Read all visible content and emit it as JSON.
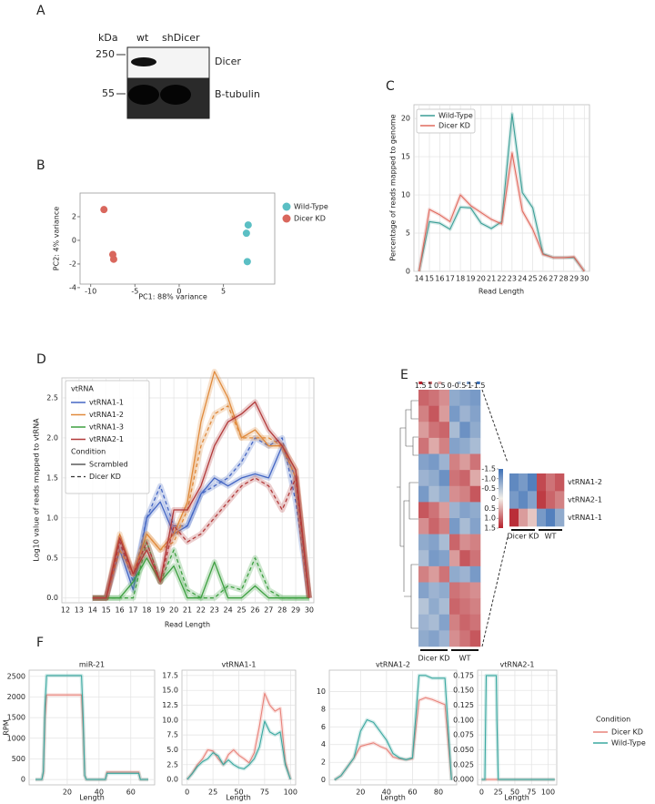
{
  "panel_labels": [
    "A",
    "B",
    "C",
    "D",
    "E",
    "F"
  ],
  "blot": {
    "unit": "kDa",
    "lanes": [
      "wt",
      "shDicer"
    ],
    "markers": [
      250,
      55
    ],
    "bands": [
      "Dicer",
      "B-tubulin"
    ]
  },
  "chart_data": [
    {
      "type": "scatter",
      "xlabel": "PC1: 88% variance",
      "ylabel": "PC2: 4% variance",
      "xlim": [
        -11.2,
        10.8
      ],
      "ylim": [
        -3.7,
        4
      ],
      "xticks": [
        -10,
        -5,
        0,
        5
      ],
      "yticks": [
        -4,
        -2,
        0,
        2
      ],
      "grid": false,
      "legend": "right",
      "series": [
        {
          "name": "Wild-Type",
          "color": "#5bbfc4",
          "x": [
            7.8,
            7.6,
            7.7
          ],
          "values": [
            1.3,
            0.6,
            -1.8
          ]
        },
        {
          "name": "Dicer KD",
          "color": "#d9675d",
          "x": [
            -8.5,
            -7.5,
            -7.4
          ],
          "values": [
            2.6,
            -1.2,
            -1.6
          ]
        }
      ]
    },
    {
      "type": "line",
      "xlabel": "Read Length",
      "ylabel": "Percentage of reads mapped to genome",
      "x": [
        14,
        15,
        16,
        17,
        18,
        19,
        20,
        21,
        22,
        23,
        24,
        25,
        26,
        27,
        28,
        29,
        30
      ],
      "xlim": [
        13.5,
        30.5
      ],
      "ylim": [
        0,
        21.8
      ],
      "xticks": [
        14,
        15,
        16,
        17,
        18,
        19,
        20,
        21,
        22,
        23,
        24,
        25,
        26,
        27,
        28,
        29,
        30
      ],
      "yticks": [
        0,
        5,
        10,
        15,
        20
      ],
      "grid": true,
      "legend": "upper left",
      "series": [
        {
          "name": "Wild-Type",
          "color": "#3a9e96",
          "values": [
            0,
            6.5,
            6.3,
            5.5,
            8.4,
            8.3,
            6.3,
            5.6,
            6.5,
            20.6,
            10.3,
            8.3,
            2.3,
            1.8,
            1.8,
            1.8,
            0
          ]
        },
        {
          "name": "Dicer KD",
          "color": "#e06a5e",
          "values": [
            0,
            8.1,
            7.4,
            6.5,
            10,
            8.6,
            7.7,
            6.8,
            6.2,
            15.5,
            7.9,
            5.5,
            2.2,
            1.8,
            1.8,
            1.9,
            0
          ]
        }
      ]
    },
    {
      "type": "line",
      "xlabel": "Read Length",
      "ylabel": "Log10 value of reads mapped to vtRNA",
      "x": [
        12,
        13,
        14,
        15,
        16,
        17,
        18,
        19,
        20,
        21,
        22,
        23,
        24,
        25,
        26,
        27,
        28,
        29,
        30
      ],
      "xlim": [
        11.73,
        30.34
      ],
      "ylim": [
        -0.06,
        2.75
      ],
      "xticks": [
        12,
        13,
        14,
        15,
        16,
        17,
        18,
        19,
        20,
        21,
        22,
        23,
        24,
        25,
        26,
        27,
        28,
        29,
        30
      ],
      "yticks": [
        {
          "value": 0,
          "label": "0.0"
        },
        0.5,
        {
          "value": 1,
          "label": "1.0"
        },
        1.5,
        {
          "value": 2,
          "label": "2.0"
        },
        2.5
      ],
      "grid": true,
      "legend": "upper left",
      "hue_title": "vtRNA",
      "hues": [
        {
          "name": "vtRNA1-1",
          "color": "#4466c4"
        },
        {
          "name": "vtRNA1-2",
          "color": "#e08a3c"
        },
        {
          "name": "vtRNA1-3",
          "color": "#3da040"
        },
        {
          "name": "vtRNA2-1",
          "color": "#b23a3a"
        }
      ],
      "style_title": "Condition",
      "styles": [
        {
          "name": "Scrambled",
          "dashed": false
        },
        {
          "name": "Dicer KD",
          "dashed": true
        }
      ],
      "series": [
        {
          "hue": 0,
          "style": 0,
          "values": [
            null,
            null,
            0,
            0,
            0.6,
            0.1,
            1.0,
            1.2,
            0.8,
            0.9,
            1.3,
            1.5,
            1.4,
            1.5,
            1.55,
            1.5,
            1.9,
            1.5,
            0
          ]
        },
        {
          "hue": 0,
          "style": 1,
          "values": [
            null,
            null,
            0,
            0,
            0.7,
            0.2,
            1.0,
            1.4,
            0.9,
            0.9,
            1.3,
            1.4,
            1.5,
            1.7,
            2.0,
            1.9,
            2.0,
            1.2,
            0
          ]
        },
        {
          "hue": 1,
          "style": 0,
          "values": [
            null,
            null,
            0,
            0,
            0.8,
            0.3,
            0.8,
            0.6,
            0.8,
            1.2,
            2.2,
            2.83,
            2.5,
            2.0,
            2.1,
            1.9,
            1.9,
            1.6,
            0
          ]
        },
        {
          "hue": 1,
          "style": 1,
          "values": [
            null,
            null,
            0,
            0,
            0.6,
            0.3,
            0.8,
            0.6,
            0.7,
            1.1,
            1.9,
            2.3,
            2.4,
            2.0,
            2.0,
            2.0,
            1.9,
            1.5,
            0
          ]
        },
        {
          "hue": 2,
          "style": 0,
          "values": [
            null,
            null,
            0,
            0,
            0,
            0.2,
            0.5,
            0.2,
            0.4,
            0,
            0,
            0.45,
            0,
            0,
            0.15,
            0,
            0,
            0,
            0
          ]
        },
        {
          "hue": 2,
          "style": 1,
          "values": [
            null,
            null,
            0,
            0,
            0,
            0,
            0.7,
            0.2,
            0.6,
            0.1,
            0,
            0,
            0.15,
            0.1,
            0.5,
            0.1,
            0,
            0,
            0
          ]
        },
        {
          "hue": 3,
          "style": 0,
          "values": [
            null,
            null,
            0,
            0,
            0.75,
            0.3,
            0.6,
            0.2,
            1.1,
            1.1,
            1.4,
            1.9,
            2.2,
            2.3,
            2.45,
            2.1,
            1.9,
            1.6,
            0
          ]
        },
        {
          "hue": 3,
          "style": 1,
          "values": [
            null,
            null,
            0,
            0,
            0.7,
            0.3,
            0.7,
            0.2,
            0.9,
            0.7,
            0.8,
            1.0,
            1.2,
            1.4,
            1.5,
            1.4,
            1.1,
            1.5,
            0
          ]
        }
      ]
    },
    {
      "type": "heatmap",
      "vlim": [
        -1.5,
        1.5
      ],
      "colorbar_ticks": [
        1.5,
        1,
        0.5,
        0,
        -0.5,
        -1,
        -1.5
      ],
      "column_groups": [
        "Dicer KD",
        "WT"
      ],
      "values": [
        [
          1.0,
          0.9,
          0.7,
          -0.8,
          -0.9,
          -1.0
        ],
        [
          0.8,
          1.1,
          0.6,
          -1.0,
          -0.7,
          -0.9
        ],
        [
          0.6,
          0.9,
          1.0,
          -0.6,
          -1.1,
          -0.8
        ],
        [
          0.9,
          0.5,
          0.8,
          -0.9,
          -0.8,
          -0.6
        ],
        [
          -0.9,
          -1.0,
          -0.7,
          0.8,
          0.6,
          0.9
        ],
        [
          -0.7,
          -0.8,
          -1.1,
          0.9,
          1.0,
          0.5
        ],
        [
          -1.0,
          -0.6,
          -0.8,
          0.7,
          0.8,
          1.1
        ],
        [
          1.1,
          0.9,
          0.6,
          -0.7,
          -0.9,
          -0.8
        ],
        [
          0.7,
          1.0,
          0.8,
          -1.0,
          -0.6,
          -0.9
        ],
        [
          -0.8,
          -0.9,
          -0.6,
          1.0,
          0.7,
          0.8
        ],
        [
          -0.6,
          -1.0,
          -0.9,
          0.6,
          1.1,
          0.9
        ],
        [
          0.8,
          0.6,
          0.9,
          -0.8,
          -0.7,
          -1.0
        ],
        [
          -0.9,
          -0.7,
          -0.8,
          0.9,
          0.8,
          0.7
        ],
        [
          -0.5,
          -0.8,
          -0.6,
          1.0,
          0.9,
          0.8
        ],
        [
          -0.7,
          -0.6,
          -0.9,
          0.8,
          1.0,
          0.9
        ],
        [
          -0.8,
          -0.9,
          -0.7,
          0.7,
          0.9,
          1.1
        ]
      ]
    },
    {
      "type": "heatmap",
      "vlim": [
        -1.5,
        1.5
      ],
      "colorbar_ticks": [
        -1.5,
        {
          "value": -1,
          "label": "-1.0"
        },
        -0.5,
        0,
        0.5,
        {
          "value": 1,
          "label": "1.0"
        },
        1.5
      ],
      "rows": [
        "vtRNA1-2",
        "vtRNA2-1",
        "vtRNA1-1"
      ],
      "column_groups": [
        "Dicer KD",
        "WT"
      ],
      "values": [
        [
          -1.2,
          -1.0,
          -1.3,
          1.2,
          0.9,
          1.1
        ],
        [
          -1.0,
          -1.2,
          -0.9,
          1.3,
          1.0,
          0.8
        ],
        [
          1.4,
          0.6,
          0.3,
          -1.0,
          -1.3,
          -0.8
        ]
      ]
    },
    {
      "type": "line",
      "title": "miR-21",
      "xlabel": "Length",
      "ylabel": "RPM",
      "legend_title": "Condition",
      "legend": "right",
      "x": [
        0,
        4,
        5,
        6,
        7,
        29,
        30,
        31,
        32,
        44,
        45,
        65,
        66,
        71
      ],
      "xlim": [
        -4,
        75
      ],
      "ylim": [
        -130,
        2650
      ],
      "xticks": [
        20,
        40,
        60
      ],
      "yticks": [
        0,
        500,
        1000,
        1500,
        2000,
        2500
      ],
      "grid": true,
      "series": [
        {
          "name": "Dicer KD",
          "color": "#e8827a",
          "values": [
            0,
            0,
            150,
            1500,
            2050,
            2050,
            1200,
            100,
            0,
            0,
            180,
            180,
            0,
            0
          ]
        },
        {
          "name": "Wild-Type",
          "color": "#3aa8a0",
          "values": [
            0,
            0,
            200,
            1800,
            2520,
            2520,
            1500,
            100,
            0,
            0,
            150,
            150,
            0,
            0
          ]
        }
      ]
    },
    {
      "type": "line",
      "title": "vtRNA1-1",
      "xlabel": "Length",
      "x": [
        0,
        5,
        10,
        15,
        20,
        25,
        30,
        35,
        40,
        45,
        50,
        55,
        60,
        65,
        70,
        75,
        80,
        85,
        90,
        95,
        100
      ],
      "xlim": [
        -5,
        105
      ],
      "ylim": [
        -0.9,
        18.4
      ],
      "xticks": [
        0,
        25,
        50,
        75,
        100
      ],
      "yticks": [
        {
          "value": 0,
          "label": "0.0"
        },
        2.5,
        {
          "value": 5,
          "label": "5.0"
        },
        7.5,
        {
          "value": 10,
          "label": "10.0"
        },
        12.5,
        {
          "value": 15,
          "label": "15.0"
        },
        17.5
      ],
      "grid": true,
      "series": [
        {
          "color": "#e8827a",
          "values": [
            0,
            1.1,
            2.5,
            3.5,
            5,
            4.8,
            3.5,
            2.5,
            4.2,
            5.0,
            4.1,
            3.5,
            2.8,
            4.5,
            9,
            14.5,
            12.5,
            11.5,
            12,
            3,
            0
          ]
        },
        {
          "color": "#3aa8a0",
          "values": [
            0,
            1,
            2.2,
            3,
            3.5,
            4.5,
            4,
            2.5,
            3.3,
            2.5,
            2,
            1.8,
            2.5,
            3.5,
            5.5,
            9.8,
            8,
            7.5,
            8,
            2.5,
            0
          ]
        }
      ]
    },
    {
      "type": "line",
      "title": "vtRNA1-2",
      "xlabel": "Length",
      "x": [
        0,
        5,
        10,
        15,
        20,
        25,
        30,
        35,
        40,
        45,
        50,
        55,
        60,
        65,
        70,
        75,
        80,
        85,
        90
      ],
      "xlim": [
        -4,
        94
      ],
      "ylim": [
        -0.55,
        12.4
      ],
      "xticks": [
        20,
        40,
        60,
        80
      ],
      "yticks": [
        0,
        2,
        4,
        6,
        8,
        10
      ],
      "grid": true,
      "series": [
        {
          "color": "#e8827a",
          "values": [
            0,
            0.5,
            1.5,
            2.5,
            3.8,
            4.0,
            4.2,
            3.8,
            3.5,
            2.6,
            2.4,
            2.3,
            2.4,
            9,
            9.3,
            9.1,
            8.8,
            8.5,
            0
          ]
        },
        {
          "color": "#3aa8a0",
          "values": [
            0,
            0.5,
            1.5,
            2.5,
            5.5,
            6.8,
            6.5,
            5.5,
            4.5,
            3,
            2.5,
            2.3,
            2.5,
            11.8,
            11.8,
            11.5,
            11.5,
            11.5,
            0
          ]
        }
      ]
    },
    {
      "type": "line",
      "title": "vtRNA2-1",
      "xlabel": "Length",
      "x": [
        0,
        5,
        6,
        7,
        22,
        23,
        25,
        110
      ],
      "xlim": [
        -6,
        113
      ],
      "ylim": [
        -0.009,
        0.184
      ],
      "xticks": [
        0,
        25,
        50,
        75,
        100
      ],
      "yticks": [
        {
          "value": 0,
          "label": "0.000"
        },
        0.025,
        {
          "value": 0.05,
          "label": "0.050"
        },
        0.075,
        {
          "value": 0.1,
          "label": "0.100"
        },
        0.125,
        {
          "value": 0.15,
          "label": "0.150"
        },
        0.175
      ],
      "grid": true,
      "series": [
        {
          "color": "#e8827a",
          "values": [
            0,
            0,
            0,
            0,
            0,
            0,
            0,
            0
          ]
        },
        {
          "color": "#3aa8a0",
          "values": [
            0,
            0,
            0.1,
            0.175,
            0.175,
            0.1,
            0,
            0
          ]
        }
      ]
    }
  ]
}
